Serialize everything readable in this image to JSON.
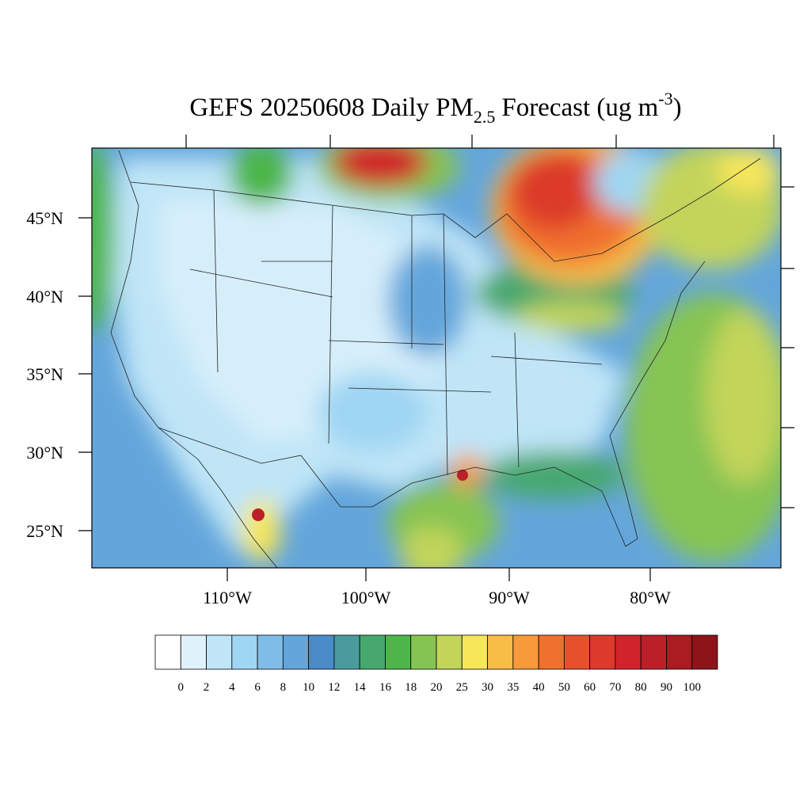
{
  "title": {
    "main": "GEFS 20250608 Daily PM",
    "sub": "2.5",
    "rest": "Forecast (ug m",
    "sup": "-3",
    "end": ")"
  },
  "map": {
    "lat_labels": [
      "45°N",
      "40°N",
      "35°N",
      "30°N",
      "25°N"
    ],
    "lon_labels": [
      "110°W",
      "100°W",
      "90°W",
      "80°W"
    ]
  },
  "colorbar": {
    "levels": [
      0,
      2,
      4,
      6,
      8,
      10,
      12,
      14,
      16,
      18,
      20,
      25,
      30,
      35,
      40,
      50,
      60,
      70,
      80,
      90,
      100
    ],
    "colors": [
      "#ffffff",
      "#dff2fb",
      "#bfe5f7",
      "#9fd6f3",
      "#80bde6",
      "#64a6db",
      "#4a8cc9",
      "#4a9b9e",
      "#46a86e",
      "#4cb64a",
      "#86c452",
      "#c2d45a",
      "#f6e65a",
      "#f8bd47",
      "#f69a3c",
      "#f0702f",
      "#e6512c",
      "#dc3a2a",
      "#d0232c",
      "#bb1f28",
      "#a81c22",
      "#8d1519"
    ]
  }
}
